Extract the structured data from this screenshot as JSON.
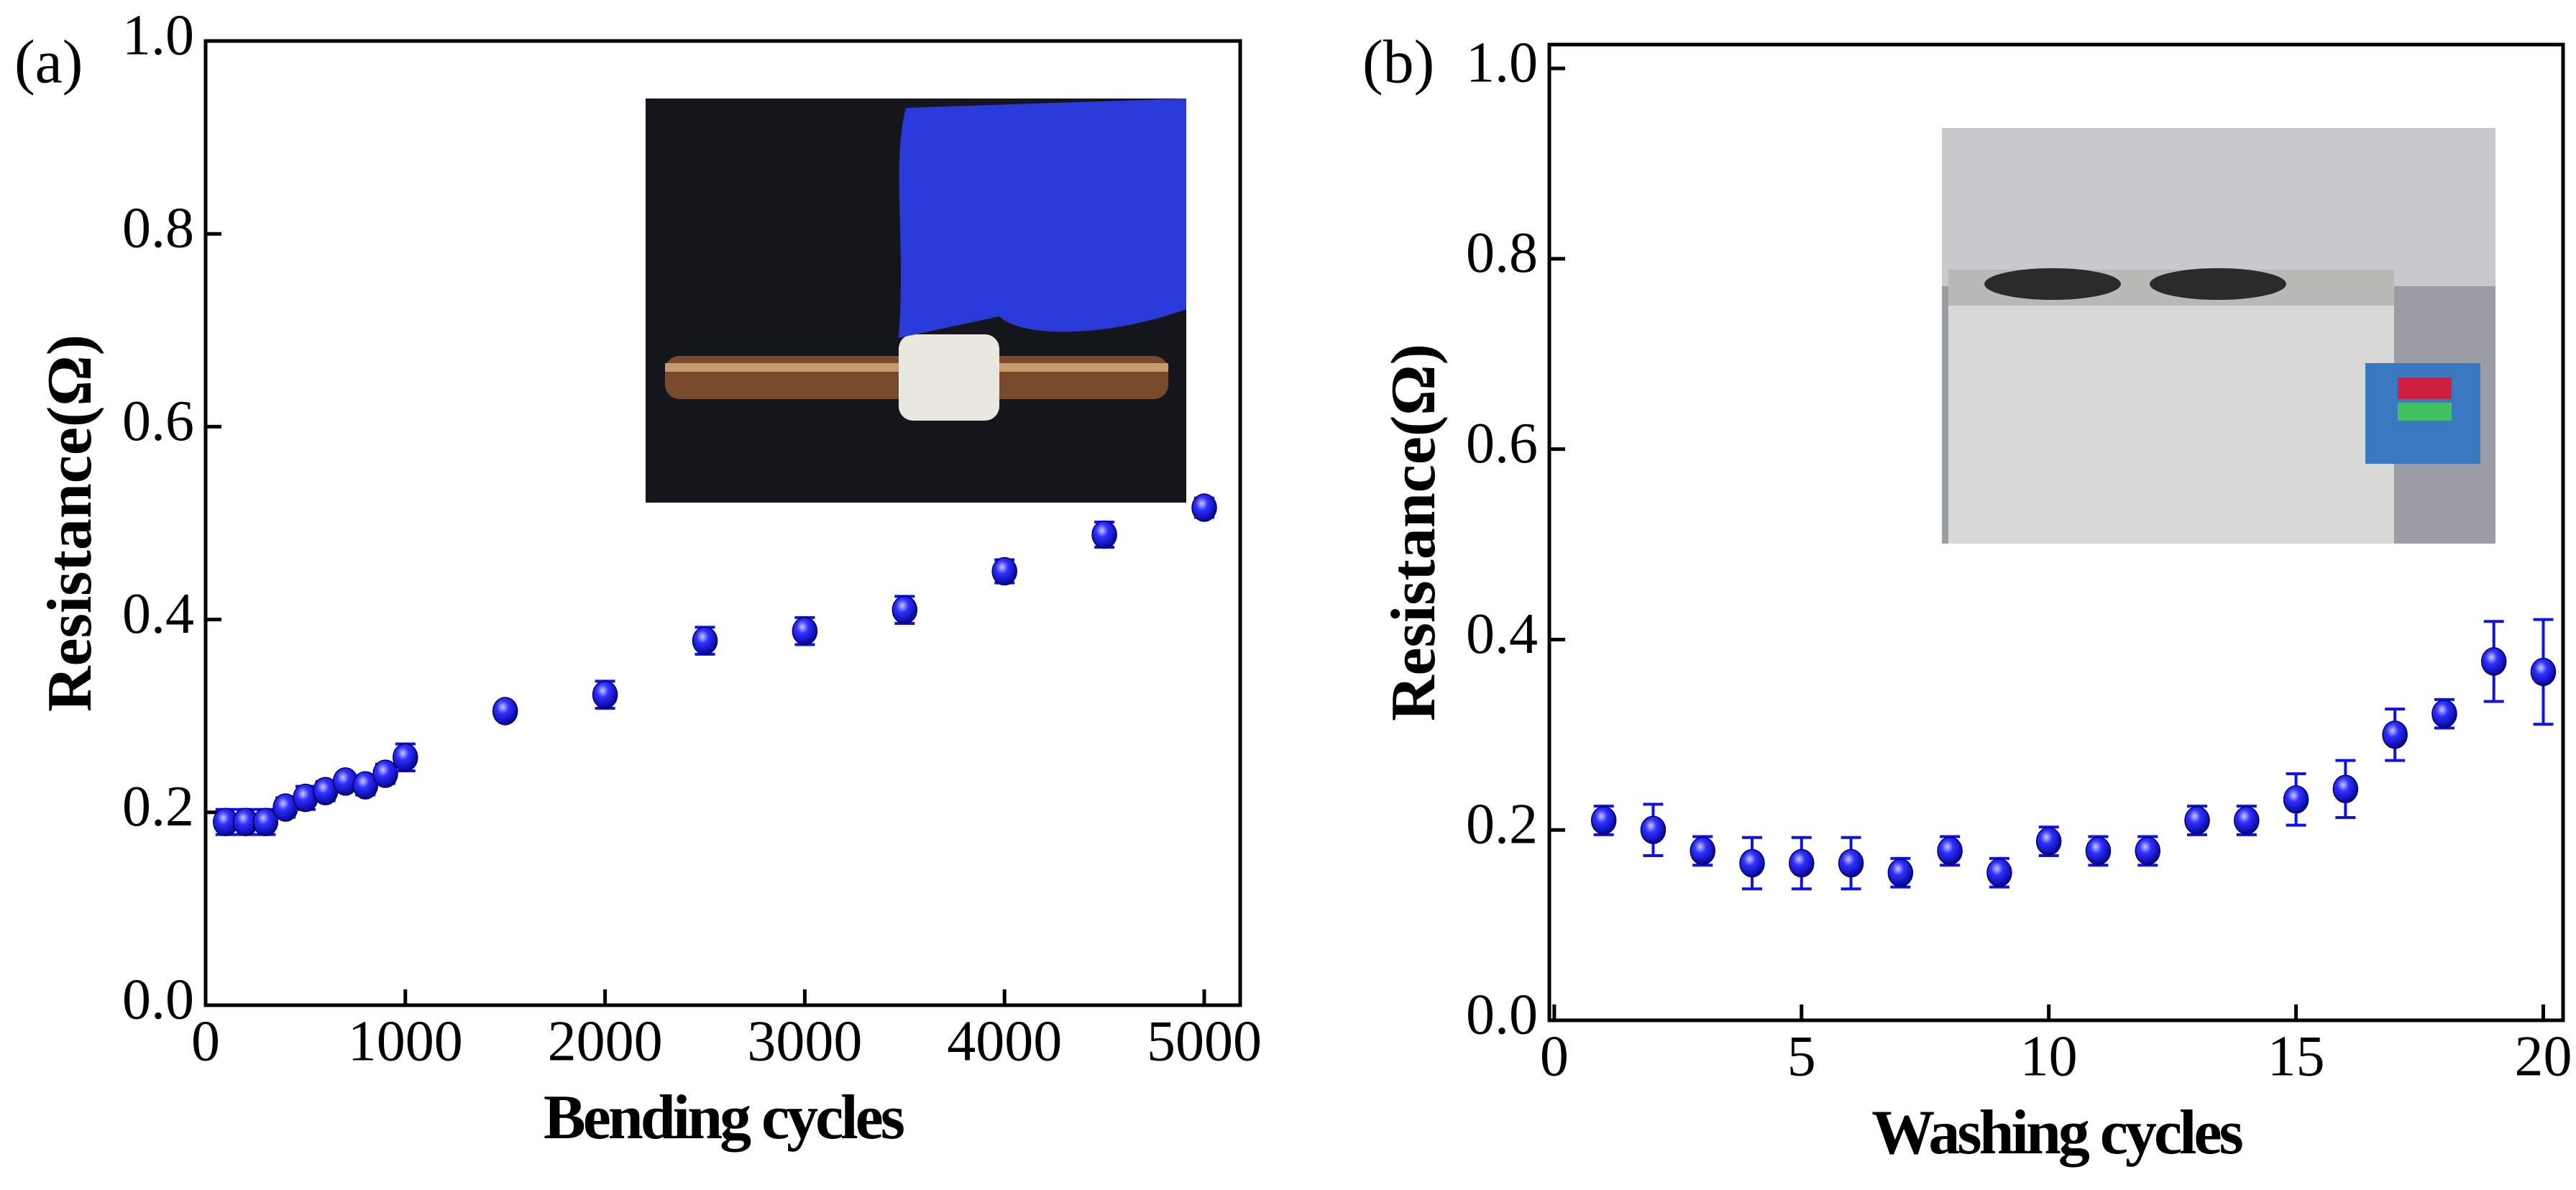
{
  "chart_data": [
    {
      "type": "scatter",
      "label": "(a)",
      "x_label": "Bending cycles",
      "y_label": "Resistance(Ω)",
      "x": [
        100,
        200,
        300,
        400,
        500,
        600,
        700,
        800,
        900,
        1000,
        1500,
        2000,
        2500,
        3000,
        3500,
        4000,
        4500,
        5000
      ],
      "series": [
        {
          "color": "#1010e8",
          "values": [
            0.19,
            0.19,
            0.19,
            0.205,
            0.215,
            0.222,
            0.232,
            0.228,
            0.24,
            0.257,
            0.305,
            0.322,
            0.378,
            0.388,
            0.41,
            0.45,
            0.488,
            0.516
          ],
          "errors": [
            0.013,
            0.013,
            0.013,
            0.01,
            0.012,
            0.01,
            0.008,
            0.01,
            0.01,
            0.014,
            0.008,
            0.014,
            0.014,
            0.014,
            0.014,
            0.012,
            0.013,
            0.01
          ]
        }
      ],
      "xlim": [
        0,
        5180
      ],
      "ylim": [
        0,
        1.0
      ],
      "xticks": [
        0,
        1000,
        2000,
        3000,
        4000,
        5000
      ],
      "yticks": [
        {
          "value": 0,
          "label": "0.0"
        },
        0.2,
        0.4,
        0.6,
        0.8,
        {
          "value": 1,
          "label": "1.0"
        }
      ]
    },
    {
      "type": "scatter",
      "label": "(b)",
      "x_label": "Washing cycles",
      "y_label": "Resistance(Ω)",
      "x": [
        1,
        2,
        3,
        4,
        5,
        6,
        7,
        8,
        9,
        10,
        11,
        12,
        13,
        14,
        15,
        16,
        17,
        18,
        19,
        20
      ],
      "series": [
        {
          "color": "#1010e8",
          "values": [
            0.21,
            0.2,
            0.178,
            0.165,
            0.165,
            0.165,
            0.155,
            0.178,
            0.155,
            0.188,
            0.178,
            0.178,
            0.21,
            0.21,
            0.232,
            0.243,
            0.3,
            0.322,
            0.377,
            0.366
          ],
          "errors": [
            0.015,
            0.027,
            0.015,
            0.027,
            0.027,
            0.027,
            0.015,
            0.015,
            0.015,
            0.015,
            0.015,
            0.015,
            0.015,
            0.015,
            0.027,
            0.03,
            0.027,
            0.015,
            0.042,
            0.055
          ]
        }
      ],
      "xlim": [
        -0.1,
        20.4
      ],
      "ylim": [
        0,
        1.025
      ],
      "xticks": [
        0,
        5,
        10,
        15,
        20
      ],
      "yticks": [
        {
          "value": 0,
          "label": "0.0"
        },
        0.2,
        0.4,
        0.6,
        0.8,
        {
          "value": 1,
          "label": "1.0"
        }
      ]
    }
  ]
}
